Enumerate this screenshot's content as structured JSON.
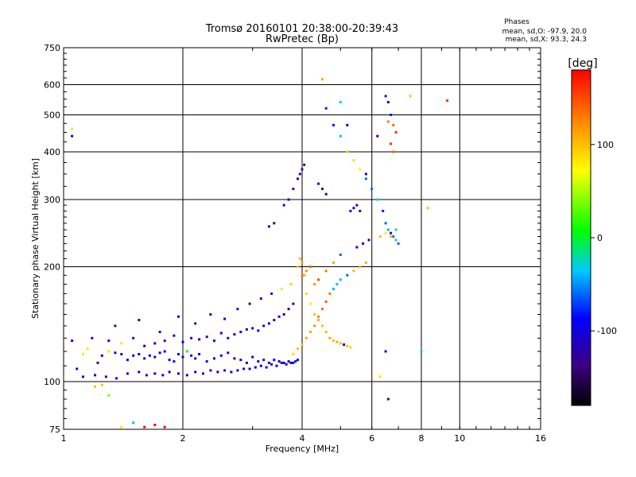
{
  "chart_data": {
    "type": "scatter",
    "title": "Tromsø 20160101 20:38:00-20:39:43",
    "subtitle": "RwPretec (Bp)",
    "xlabel": "Frequency [MHz]",
    "ylabel": "Stationary phase Virtual Height [km]",
    "x_scale": "log",
    "y_scale": "log",
    "xlim": [
      1,
      16
    ],
    "ylim": [
      75,
      750
    ],
    "x_ticks": [
      1,
      2,
      4,
      6,
      8,
      10,
      16
    ],
    "y_ticks": [
      75,
      100,
      200,
      300,
      400,
      500,
      600,
      750
    ],
    "x_tick_labels": [
      "1",
      "2",
      "4",
      "6",
      "8",
      "10",
      "16"
    ],
    "y_tick_labels": [
      "75",
      "100",
      "200",
      "300",
      "400",
      "500",
      "600",
      "750"
    ],
    "grid": true,
    "stats": {
      "header": "Phases",
      "line_o": "mean, sd,O: -97.9, 20.0",
      "line_x": "mean, sd,X:  93.3, 24.3"
    },
    "colorbar": {
      "label": "[deg]",
      "min": -180,
      "max": 180,
      "ticks": [
        100,
        0,
        -100
      ],
      "tick_labels": [
        "100",
        "0",
        "-100"
      ],
      "position": "right"
    },
    "series": [
      {
        "x": [
          1.05,
          1.08,
          1.12,
          1.15,
          1.18,
          1.22,
          1.25,
          1.3,
          1.35,
          1.4,
          1.45,
          1.5,
          1.55,
          1.6,
          1.65,
          1.7,
          1.75,
          1.8,
          1.85,
          1.9,
          1.95,
          2.0,
          2.05,
          2.1,
          2.15,
          2.2,
          2.3,
          2.4,
          2.5,
          2.6,
          2.7,
          2.8,
          2.9,
          3.0,
          3.1,
          3.2,
          3.3,
          3.4,
          3.5,
          3.6,
          3.7,
          3.8,
          3.9,
          1.12,
          1.2,
          1.28,
          1.36,
          1.45,
          1.55,
          1.62,
          1.7,
          1.78,
          1.85,
          1.95,
          2.05,
          2.15,
          2.25,
          2.35,
          2.45,
          2.55,
          2.65,
          2.75,
          2.85,
          2.95,
          3.05,
          3.15,
          3.25,
          3.35,
          3.45,
          3.55,
          3.65,
          3.75,
          3.85,
          1.3,
          1.4,
          1.5,
          1.6,
          1.7,
          1.8,
          1.9,
          2.0,
          2.1,
          2.2,
          2.3,
          2.4,
          2.5,
          2.6,
          2.7,
          2.8,
          2.9,
          3.0,
          3.1,
          3.2,
          3.3,
          3.4,
          3.5,
          3.6,
          3.7,
          3.8,
          1.35,
          1.55,
          1.75,
          1.95,
          2.15,
          2.35,
          2.55,
          2.75,
          2.95,
          3.15,
          3.35,
          3.55,
          3.75,
          3.9,
          3.95,
          4.0,
          4.05,
          4.1,
          4.2,
          4.3,
          4.4,
          4.5,
          4.6,
          4.7,
          4.8,
          4.9,
          5.0,
          5.1,
          5.2,
          5.3,
          3.8,
          3.9,
          4.0,
          4.1,
          4.2,
          4.3,
          4.4,
          4.5,
          4.6,
          4.7,
          4.8,
          4.9,
          5.0,
          5.2,
          5.4,
          5.6,
          5.8,
          4.0,
          4.1,
          4.2,
          4.3,
          4.4,
          4.6,
          4.8,
          5.0,
          5.5,
          5.7,
          5.9,
          3.3,
          3.4,
          3.6,
          3.7,
          3.8,
          3.9,
          3.95,
          4.0,
          4.05,
          4.4,
          4.5,
          4.6,
          5.3,
          5.4,
          5.5,
          5.6,
          4.6,
          4.8,
          5.0,
          5.2,
          5.4,
          5.6,
          5.8,
          6.0,
          6.2,
          6.4,
          6.5,
          6.6,
          6.7,
          6.8,
          6.9,
          7.0,
          6.3,
          6.5,
          6.7,
          6.9,
          6.5,
          6.6,
          6.7,
          6.8,
          6.9,
          6.6,
          6.7,
          6.8,
          7.5,
          8.3,
          9.3,
          4.5,
          5.0,
          5.2,
          5.8,
          6.2,
          6.5,
          8.0,
          6.3,
          6.6,
          1.05,
          1.05,
          1.2,
          1.25,
          1.3,
          1.4,
          1.5,
          1.6,
          1.7,
          1.8
        ],
        "y": [
          128,
          108,
          118,
          122,
          130,
          112,
          117,
          120,
          119,
          118,
          114,
          117,
          118,
          115,
          117,
          116,
          119,
          120,
          114,
          113,
          118,
          116,
          120,
          117,
          115,
          118,
          113,
          115,
          117,
          119,
          115,
          114,
          112,
          116,
          113,
          114,
          112,
          114,
          113,
          112,
          113,
          112,
          114,
          103,
          104,
          103,
          102,
          105,
          106,
          104,
          105,
          104,
          106,
          105,
          104,
          106,
          105,
          107,
          106,
          107,
          106,
          107,
          108,
          108,
          109,
          110,
          109,
          111,
          110,
          112,
          111,
          112,
          113,
          128,
          126,
          130,
          124,
          126,
          128,
          132,
          127,
          130,
          129,
          131,
          128,
          134,
          130,
          133,
          135,
          137,
          138,
          136,
          140,
          142,
          145,
          148,
          150,
          155,
          160,
          140,
          145,
          135,
          148,
          142,
          150,
          146,
          155,
          160,
          165,
          170,
          175,
          180,
          200,
          210,
          205,
          190,
          170,
          160,
          150,
          145,
          140,
          135,
          130,
          128,
          127,
          126,
          125,
          124,
          123,
          118,
          122,
          125,
          130,
          135,
          140,
          148,
          155,
          162,
          170,
          175,
          180,
          185,
          190,
          195,
          200,
          205,
          190,
          195,
          200,
          180,
          185,
          195,
          205,
          215,
          225,
          230,
          235,
          255,
          260,
          290,
          300,
          320,
          340,
          350,
          360,
          370,
          330,
          320,
          310,
          280,
          285,
          290,
          280,
          520,
          470,
          440,
          400,
          380,
          360,
          340,
          320,
          300,
          280,
          260,
          250,
          245,
          240,
          235,
          230,
          240,
          245,
          240,
          250,
          560,
          540,
          500,
          470,
          450,
          480,
          420,
          400,
          560,
          285,
          545,
          620,
          540,
          470,
          350,
          440,
          120,
          120,
          103,
          90,
          460,
          440,
          97,
          98,
          92,
          76,
          78,
          76,
          77,
          76
        ],
        "phase": [
          -100,
          -100,
          60,
          60,
          -100,
          -120,
          -100,
          60,
          -110,
          -100,
          -100,
          -110,
          -100,
          -100,
          -90,
          -100,
          -110,
          -100,
          -100,
          -90,
          -100,
          -110,
          0,
          -100,
          -110,
          -90,
          -100,
          -100,
          -100,
          -110,
          -100,
          -110,
          -100,
          -90,
          -100,
          -110,
          -100,
          -100,
          -100,
          -100,
          -100,
          -100,
          -100,
          -110,
          -120,
          -110,
          -110,
          -120,
          -110,
          -120,
          -110,
          -100,
          -110,
          -120,
          -110,
          -100,
          -110,
          -120,
          -100,
          -110,
          -100,
          -110,
          -100,
          -100,
          -110,
          -100,
          -100,
          -100,
          -100,
          -100,
          -100,
          -100,
          -100,
          -100,
          60,
          -100,
          -110,
          -100,
          -130,
          -110,
          -100,
          -120,
          -100,
          -130,
          -100,
          -100,
          -110,
          -100,
          -100,
          -130,
          -100,
          -100,
          -120,
          -100,
          -120,
          -100,
          -130,
          -120,
          -100,
          -120,
          -100,
          -130,
          -100,
          -130,
          -100,
          -100,
          -130,
          -120,
          -130,
          -120,
          80,
          90,
          100,
          100,
          110,
          110,
          90,
          80,
          100,
          110,
          100,
          100,
          110,
          100,
          110,
          100,
          -120,
          100,
          90,
          90,
          100,
          100,
          110,
          110,
          120,
          130,
          140,
          140,
          130,
          -40,
          -40,
          -40,
          -60,
          100,
          100,
          110,
          130,
          120,
          140,
          120,
          150,
          130,
          110,
          -60,
          -120,
          -130,
          -130,
          -130,
          -140,
          -130,
          -120,
          -130,
          -130,
          -130,
          -130,
          -120,
          -120,
          -140,
          -130,
          -90,
          -120,
          -110,
          -130,
          -80,
          -80,
          -40,
          50,
          90,
          70,
          -60,
          -60,
          -20,
          -80,
          -60,
          -40,
          -100,
          -60,
          -20,
          -60,
          100,
          80,
          100,
          -20,
          -80,
          -120,
          -80,
          140,
          160,
          130,
          160,
          140,
          40,
          100,
          160,
          110,
          -30,
          -110,
          -110,
          -100,
          -110,
          -20,
          60,
          -130,
          60,
          -130,
          100,
          100,
          40,
          60,
          -40
        ]
      }
    ]
  }
}
